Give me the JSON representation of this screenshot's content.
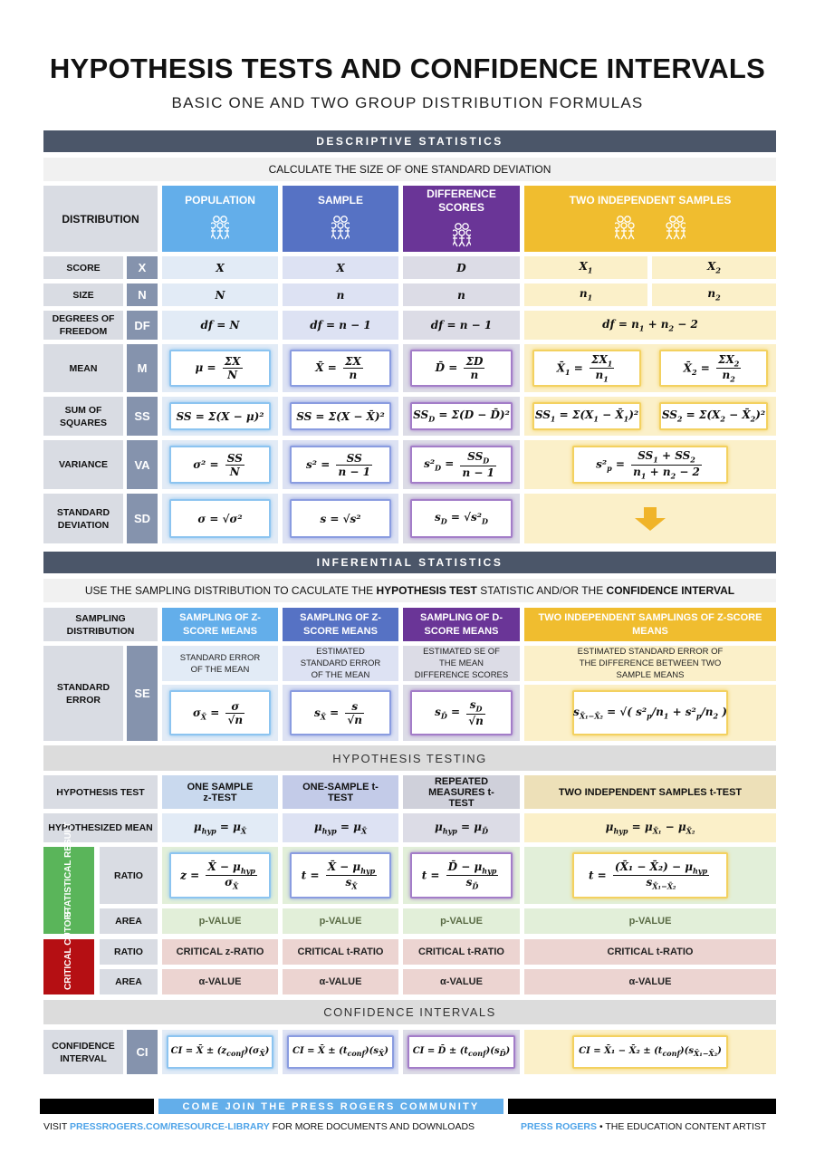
{
  "title": "HYPOTHESIS TESTS AND CONFIDENCE INTERVALS",
  "subtitle": "BASIC ONE AND TWO GROUP DISTRIBUTION FORMULAS",
  "colors": {
    "header": "#4b5669",
    "population": "#63aeea",
    "sample": "#5672c4",
    "difference": "#6a3597",
    "two": "#f0bd2f",
    "label": "#d9dce3",
    "abbr": "#8593ad",
    "statistical_result": "#5ab55a",
    "critical_cutoff": "#b50f13"
  },
  "descriptive": {
    "header": "DESCRIPTIVE STATISTICS",
    "instruction": "CALCULATE THE SIZE OF ONE STANDARD DEVIATION",
    "distribution_label": "DISTRIBUTION",
    "columns": [
      "POPULATION",
      "SAMPLE",
      "DIFFERENCE SCORES",
      "TWO INDEPENDENT SAMPLES"
    ],
    "icon": "people-group-icon",
    "rows": {
      "score": {
        "label": "SCORE",
        "abbr": "X",
        "cells": [
          "X",
          "X",
          "D",
          "X_{1}",
          "X_{2}"
        ]
      },
      "size": {
        "label": "SIZE",
        "abbr": "N",
        "cells": [
          "N",
          "n",
          "n",
          "n_{1}",
          "n_{2}"
        ]
      },
      "df": {
        "label": "DEGREES OF FREEDOM",
        "abbr": "DF",
        "cells": [
          "df = N",
          "df = n − 1",
          "df = n − 1",
          "df = n_{1} + n_{2} − 2"
        ]
      },
      "mean": {
        "label": "MEAN",
        "abbr": "M",
        "cells": [
          {
            "lhs": "μ =",
            "num": "ΣX",
            "den": "N"
          },
          {
            "lhs": "X̄ =",
            "num": "ΣX",
            "den": "n"
          },
          {
            "lhs": "D̄ =",
            "num": "ΣD",
            "den": "n"
          },
          {
            "lhs": "X̄_{1} =",
            "num": "ΣX_{1}",
            "den": "n_{1}"
          },
          {
            "lhs": "X̄_{2} =",
            "num": "ΣX_{2}",
            "den": "n_{2}"
          }
        ]
      },
      "ss": {
        "label": "SUM OF SQUARES",
        "abbr": "SS",
        "cells": [
          "SS = Σ(X − μ)²",
          "SS = Σ(X − X̄)²",
          "SS_{D} = Σ(D − D̄)²",
          "SS_{1} = Σ(X_{1} − X̄_{1})²",
          "SS_{2} = Σ(X_{2} − X̄_{2})²"
        ]
      },
      "variance": {
        "label": "VARIANCE",
        "abbr": "VA",
        "cells": [
          {
            "lhs": "σ² =",
            "num": "SS",
            "den": "N"
          },
          {
            "lhs": "s² =",
            "num": "SS",
            "den": "n − 1"
          },
          {
            "lhs": "s²_{D} =",
            "num": "SS_{D}",
            "den": "n − 1"
          },
          {
            "lhs": "s²_{p} =",
            "num": "SS_{1} + SS_{2}",
            "den": "n_{1} + n_{2} − 2"
          }
        ]
      },
      "sd": {
        "label": "STANDARD DEVIATION",
        "abbr": "SD",
        "cells": [
          "σ = √σ²",
          "s = √s²",
          "s_{D} = √s²_{D}"
        ],
        "two_icon": "arrow-down-icon"
      }
    }
  },
  "inferential": {
    "header": "INFERENTIAL STATISTICS",
    "instruction_parts": [
      "USE THE SAMPLING DISTRIBUTION TO CACULATE THE ",
      "HYPOTHESIS TEST",
      " STATISTIC AND/OR THE ",
      "CONFIDENCE INTERVAL"
    ],
    "sampling_label": "SAMPLING DISTRIBUTION",
    "sampling_columns": [
      "SAMPLING OF Z-SCORE MEANS",
      "SAMPLING OF Z-SCORE MEANS",
      "SAMPLING OF D-SCORE MEANS",
      "TWO INDEPENDENT SAMPLINGS OF Z-SCORE MEANS"
    ],
    "se": {
      "label": "STANDARD ERROR",
      "abbr": "SE",
      "descriptions": [
        "STANDARD ERROR OF THE MEAN",
        "ESTIMATED STANDARD ERROR OF THE MEAN",
        "ESTIMATED SE OF THE MEAN DIFFERENCE SCORES",
        "ESTIMATED STANDARD ERROR OF THE DIFFERENCE BETWEEN TWO SAMPLE MEANS"
      ],
      "formulas": [
        {
          "lhs": "σ_{X̄} =",
          "num": "σ",
          "den": "√n"
        },
        {
          "lhs": "s_{X̄} =",
          "num": "s",
          "den": "√n"
        },
        {
          "lhs": "s_{D̄} =",
          "num": "s_{D}",
          "den": "√n"
        },
        "s_{X̄₁−X̄₂} = √( s²_{p}/n_{1} + s²_{p}/n_{2} )"
      ]
    }
  },
  "hypothesis": {
    "header": "HYPOTHESIS TESTING",
    "test_label": "HYPOTHESIS TEST",
    "tests": [
      "ONE SAMPLE z-TEST",
      "ONE-SAMPLE t-TEST",
      "REPEATED MEASURES t-TEST",
      "TWO INDEPENDENT SAMPLES t-TEST"
    ],
    "mean_label": "HYPOTHESIZED MEAN",
    "means": [
      "μ_{hyp} = μ_{X̄}",
      "μ_{hyp} = μ_{X̄}",
      "μ_{hyp} = μ_{D̄}",
      "μ_{hyp} = μ_{X̄₁} − μ_{X̄₂}"
    ],
    "statistical_result": {
      "label": "STATISTICAL RESULT",
      "ratio_label": "RATIO",
      "area_label": "AREA",
      "ratios": [
        {
          "lhs": "z =",
          "num": "X̄ − μ_{hyp}",
          "den": "σ_{X̄}"
        },
        {
          "lhs": "t =",
          "num": "X̄ − μ_{hyp}",
          "den": "s_{X̄}"
        },
        {
          "lhs": "t =",
          "num": "D̄ − μ_{hyp}",
          "den": "s_{D̄}"
        },
        {
          "lhs": "t =",
          "num": "(X̄₁ − X̄₂) − μ_{hyp}",
          "den": "s_{X̄₁−X̄₂}"
        }
      ],
      "areas": [
        "p-VALUE",
        "p-VALUE",
        "p-VALUE",
        "p-VALUE"
      ]
    },
    "critical_cutoff": {
      "label": "CRITICAL CUTOFF",
      "ratio_label": "RATIO",
      "area_label": "AREA",
      "ratios": [
        "CRITICAL z-RATIO",
        "CRITICAL t-RATIO",
        "CRITICAL t-RATIO",
        "CRITICAL t-RATIO"
      ],
      "areas": [
        "α-VALUE",
        "α-VALUE",
        "α-VALUE",
        "α-VALUE"
      ]
    }
  },
  "confidence": {
    "header": "CONFIDENCE INTERVALS",
    "label": "CONFIDENCE INTERVAL",
    "abbr": "CI",
    "formulas": [
      "CI = X̄ ± (z_{conf})(σ_{X̄})",
      "CI = X̄ ± (t_{conf})(s_{X̄})",
      "CI = D̄ ± (t_{conf})(s_{D̄})",
      "CI = X̄₁ − X̄₂ ± (t_{conf})(s_{X̄₁−X̄₂})"
    ]
  },
  "footer": {
    "banner": "COME JOIN THE PRESS ROGERS COMMUNITY",
    "visit_prefix": "VISIT ",
    "link": "PRESSROGERS.COM/RESOURCE-LIBRARY",
    "visit_suffix": " FOR MORE DOCUMENTS AND DOWNLOADS",
    "brand": "PRESS ROGERS",
    "tagline": " • THE EDUCATION CONTENT ARTIST"
  }
}
